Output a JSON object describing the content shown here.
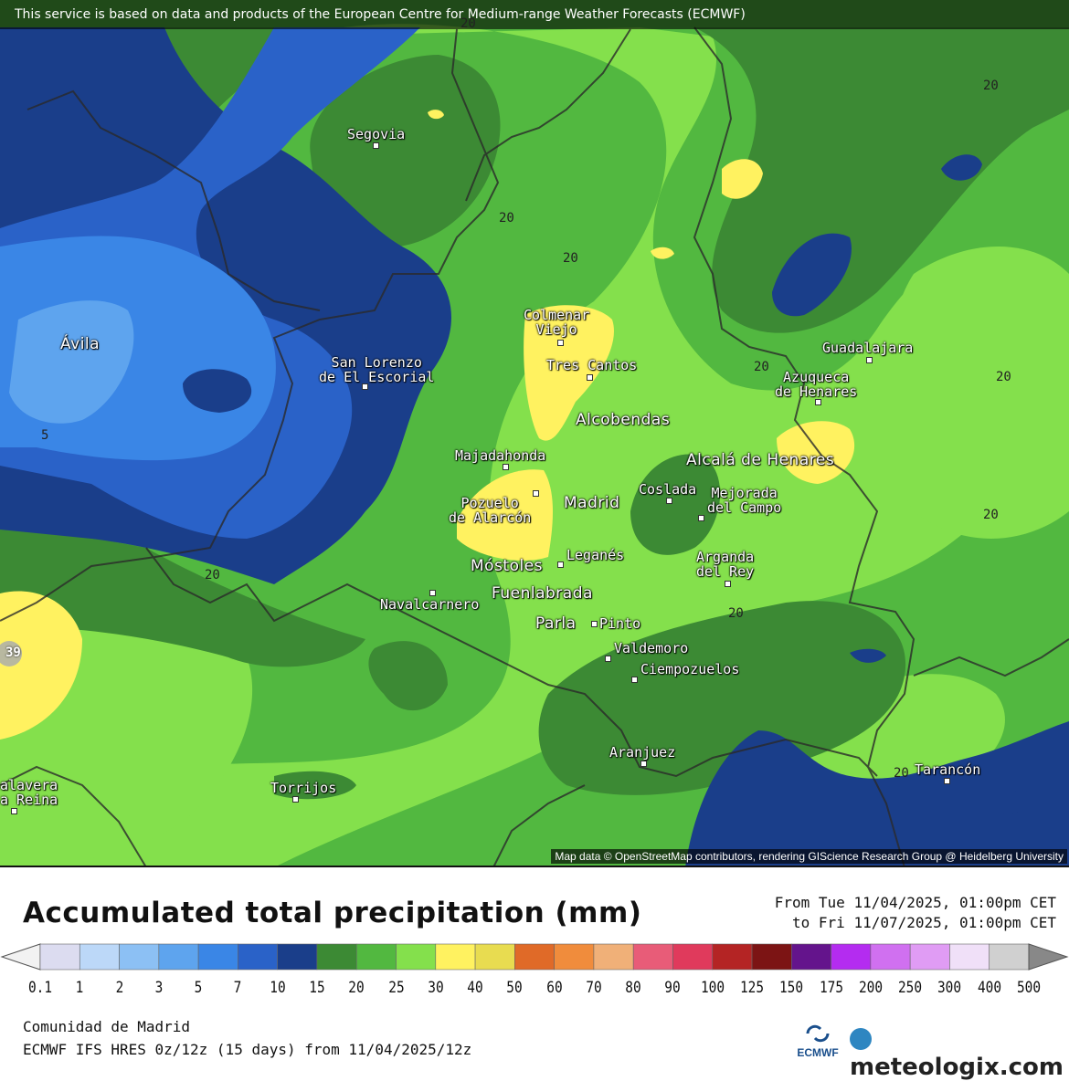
{
  "map": {
    "source_notice": "This service is based on data and products of the European Centre for Medium-range Weather Forecasts (ECMWF)",
    "attribution": "Map data © OpenStreetMap contributors, rendering GIScience Research Group @ Heidelberg University",
    "cities": [
      {
        "name": "segovia",
        "label": "Segovia",
        "big": false
      },
      {
        "name": "avila",
        "label": "Ávila",
        "big": true
      },
      {
        "name": "san-lorenzo",
        "label": "San Lorenzo\nde El Escorial",
        "big": false
      },
      {
        "name": "colmenar-viejo",
        "label": "Colmenar\nViejo",
        "big": false
      },
      {
        "name": "tres-cantos",
        "label": "Tres Cantos",
        "big": false
      },
      {
        "name": "alcobendas",
        "label": "Alcobendas",
        "big": true
      },
      {
        "name": "majadahonda",
        "label": "Majadahonda",
        "big": false
      },
      {
        "name": "pozuelo",
        "label": "Pozuelo\nde Alarcón",
        "big": false
      },
      {
        "name": "madrid",
        "label": "Madrid",
        "big": true
      },
      {
        "name": "coslada",
        "label": "Coslada",
        "big": false
      },
      {
        "name": "mejorada",
        "label": "Mejorada\ndel Campo",
        "big": false
      },
      {
        "name": "alcala",
        "label": "Alcalá de Henares",
        "big": true
      },
      {
        "name": "guadalajara",
        "label": "Guadalajara",
        "big": false
      },
      {
        "name": "azuqueca",
        "label": "Azuqueca\nde Henares",
        "big": false
      },
      {
        "name": "mostoles",
        "label": "Móstoles",
        "big": true
      },
      {
        "name": "leganes",
        "label": "Leganés",
        "big": false
      },
      {
        "name": "arganda",
        "label": "Arganda\ndel Rey",
        "big": false
      },
      {
        "name": "navalcarnero",
        "label": "Navalcarnero",
        "big": false
      },
      {
        "name": "fuenlabrada",
        "label": "Fuenlabrada",
        "big": true
      },
      {
        "name": "parla",
        "label": "Parla",
        "big": true
      },
      {
        "name": "pinto",
        "label": "Pinto",
        "big": false
      },
      {
        "name": "valdemoro",
        "label": "Valdemoro",
        "big": false
      },
      {
        "name": "ciempozuelos",
        "label": "Ciempozuelos",
        "big": false
      },
      {
        "name": "aranjuez",
        "label": "Aranjuez",
        "big": false
      },
      {
        "name": "torrijos",
        "label": "Torrijos",
        "big": false
      },
      {
        "name": "talavera",
        "label": "alavera\na Reina",
        "big": false
      },
      {
        "name": "tarancon",
        "label": "Tarancón",
        "big": false
      }
    ],
    "contour_labels": [
      "20",
      "20",
      "20",
      "20",
      "20",
      "20",
      "20",
      "20",
      "20",
      "20",
      "5",
      "20",
      "39"
    ]
  },
  "legend": {
    "title": "Accumulated total precipitation (mm)",
    "period_from": "From Tue 11/04/2025, 01:00pm CET",
    "period_to": "to Fri 11/07/2025, 01:00pm CET",
    "ticks": [
      "0.1",
      "1",
      "2",
      "3",
      "5",
      "7",
      "10",
      "15",
      "20",
      "25",
      "30",
      "40",
      "50",
      "60",
      "70",
      "80",
      "90",
      "100",
      "125",
      "150",
      "175",
      "200",
      "250",
      "300",
      "400",
      "500"
    ],
    "colors": [
      "#dcdcf0",
      "#bcd8f8",
      "#8cc0f4",
      "#5ea4ee",
      "#3a86e6",
      "#2a62c8",
      "#1a3e8a",
      "#3c8a34",
      "#52b840",
      "#84e04c",
      "#fff260",
      "#e8dc50",
      "#e06a28",
      "#f08c3c",
      "#f0b078",
      "#e85c78",
      "#e03a5c",
      "#b42424",
      "#7c1414",
      "#64148c",
      "#b42cf0",
      "#d070f0",
      "#e09cf4",
      "#f0e0f8",
      "#d0d0d0"
    ]
  },
  "footer": {
    "region": "Comunidad de Madrid",
    "model": "ECMWF IFS HRES 0z/12z (15 days) from 11/04/2025/12z",
    "ecmwf_logo": "ECMWF",
    "brand": "meteologix.com"
  }
}
